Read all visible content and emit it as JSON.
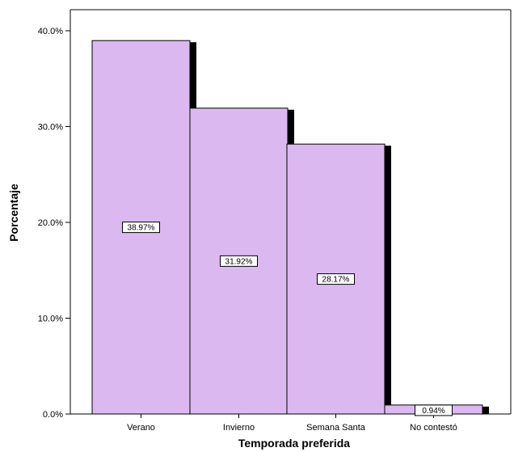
{
  "chart_data": {
    "type": "bar",
    "title": "",
    "xlabel": "Temporada preferida",
    "ylabel": "Porcentaje",
    "categories": [
      "Verano",
      "Invierno",
      "Semana Santa",
      "No contestó"
    ],
    "values": [
      38.97,
      31.92,
      28.17,
      0.94
    ],
    "data_labels": [
      "38.97%",
      "31.92%",
      "28.17%",
      "0.94%"
    ],
    "ylim": [
      0,
      40
    ],
    "yticks": [
      0,
      10,
      20,
      30,
      40
    ],
    "ytick_labels": [
      "0.0%",
      "10.0%",
      "20.0%",
      "30.0%",
      "40.0%"
    ],
    "grid": false,
    "legend": "none",
    "colors": {
      "bar_fill": "#dcb8f0",
      "bar_stroke": "#000000",
      "bar_shadow": "#000000",
      "axis": "#000000",
      "label_box_fill": "#ffffff"
    }
  }
}
